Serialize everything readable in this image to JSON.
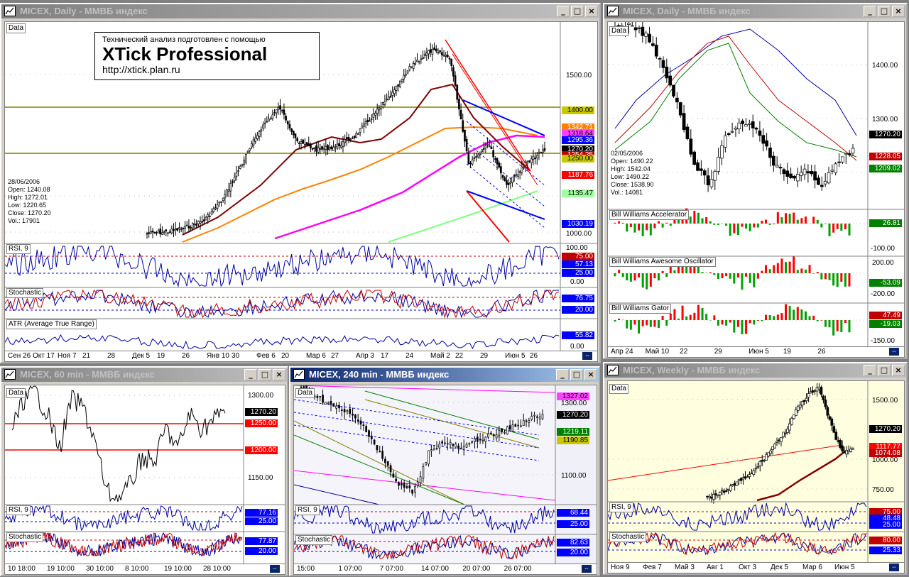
{
  "windows": {
    "daily_main": {
      "title": "MICEX, Daily - ММВБ индекс",
      "data_tag": "Data",
      "banner": {
        "line1": "Технический анализ подготовлен с помощью",
        "line2": "XTick Professional",
        "line3": "http://xtick.plan.ru"
      },
      "info": {
        "date": "28/06/2006",
        "open": "Open: 1240.08",
        "high": "High: 1272.01",
        "low": "Low: 1220.65",
        "close": "Close: 1270.20",
        "vol": "Vol.: 17901"
      },
      "price_axis": [
        "1500.00",
        "1000.00"
      ],
      "price_labels": [
        {
          "text": "1400.00",
          "bg": "#c8c800"
        },
        {
          "text": "1342.71",
          "bg": "#ff8000"
        },
        {
          "text": "1318.64",
          "bg": "#ff40ff"
        },
        {
          "text": "1295.36",
          "bg": "#0000ff"
        },
        {
          "text": "1270.20",
          "bg": "#000000"
        },
        {
          "text": "1254.25",
          "bg": "#c00000"
        },
        {
          "text": "1250.00",
          "bg": "#c8c800"
        },
        {
          "text": "1187.76",
          "bg": "#ff0000"
        },
        {
          "text": "1135.47",
          "bg": "#a0ffa0"
        },
        {
          "text": "1030.19",
          "bg": "#0000ff"
        }
      ],
      "rsi": {
        "tag": "RSI, 9",
        "labels": [
          "100.00",
          "75.00",
          "57.13",
          "25.00",
          "0.00"
        ]
      },
      "stoch": {
        "tag": "Stochastic",
        "labels": [
          "76.75",
          "20.00"
        ]
      },
      "atr": {
        "tag": "ATR (Average True Range)",
        "labels": [
          "55.82",
          "0.00"
        ]
      },
      "xaxis": [
        "Сен 26",
        "Окт 17",
        "Ноя 7",
        "21",
        "28",
        "Дек 5",
        "19",
        "26",
        "Янв 10",
        "30",
        "Фев 6",
        "20",
        "Мар 6",
        "27",
        "Апр 3",
        "17",
        "24",
        "Май 2",
        "22",
        "29",
        "Июн 5",
        "26"
      ]
    },
    "daily_bw": {
      "title": "MICEX, Daily - ММВБ индекс",
      "data_tag": "Data",
      "info": {
        "date": "02/05/2006",
        "open": "Open: 1490.22",
        "high": "High: 1542.04",
        "low": "Low: 1490.22",
        "close": "Close: 1538.90",
        "vol": "Vol.: 14081"
      },
      "price_axis": [
        "1400.00",
        "1300.00"
      ],
      "price_labels": [
        {
          "text": "1270.20",
          "bg": "#000000"
        },
        {
          "text": "1228.05",
          "bg": "#c00000"
        },
        {
          "text": "1209.02",
          "bg": "#008000"
        }
      ],
      "accel": {
        "tag": "Bill Williams Accelerator",
        "labels": [
          "26.81",
          "-100.00"
        ]
      },
      "ao": {
        "tag": "Bill Williams Awesome Oscillator",
        "labels": [
          "200.00",
          "-53.09",
          "-200.00"
        ]
      },
      "gator": {
        "tag": "Bill Williams Gator",
        "labels": [
          "47.49",
          "-19.03",
          "-150.00"
        ]
      },
      "xaxis": [
        "Апр 24",
        "Май 10",
        "22",
        "29",
        "Июн 5",
        "19",
        "26"
      ]
    },
    "min60": {
      "title": "MICEX, 60 min - ММВБ индекс",
      "data_tag": "Data",
      "price_axis": [
        "1300.00",
        "1150.00"
      ],
      "price_labels": [
        {
          "text": "1270.20",
          "bg": "#000000"
        },
        {
          "text": "1250.00",
          "bg": "#ff0000"
        },
        {
          "text": "1200.00",
          "bg": "#ff0000"
        }
      ],
      "rsi": {
        "tag": "RSI, 9",
        "labels": [
          "77.16",
          "25.00"
        ]
      },
      "stoch": {
        "tag": "Stochastic",
        "labels": [
          "77.87",
          "20.00"
        ]
      },
      "xaxis": [
        "10 18:00",
        "19 10:00",
        "30 10:00",
        "8 10:00",
        "19 10:00",
        "28 10:00"
      ]
    },
    "min240": {
      "title": "MICEX, 240 min - ММВБ индекс",
      "data_tag": "Data",
      "price_axis": [
        "1300.00",
        "1100.00"
      ],
      "price_labels": [
        {
          "text": "1327.02",
          "bg": "#ff40ff"
        },
        {
          "text": "1270.20",
          "bg": "#000000"
        },
        {
          "text": "1219.11",
          "bg": "#008000"
        },
        {
          "text": "1190.85",
          "bg": "#c8c800"
        }
      ],
      "rsi": {
        "tag": "RSI, 9",
        "labels": [
          "68.44",
          "25.00"
        ]
      },
      "stoch": {
        "tag": "Stochastic",
        "labels": [
          "82.63",
          "20.00"
        ]
      },
      "xaxis": [
        "15:00",
        "1 07:00",
        "7 07:00",
        "14 07:00",
        "20 07:00",
        "26 07:00"
      ]
    },
    "weekly": {
      "title": "MICEX, Weekly - ММВБ индекс",
      "data_tag": "Data",
      "price_axis": [
        "1500.00",
        "1000.00",
        "750.00"
      ],
      "price_labels": [
        {
          "text": "1270.20",
          "bg": "#000000"
        },
        {
          "text": "1117.77",
          "bg": "#ff0000"
        },
        {
          "text": "1074.08",
          "bg": "#c00000"
        }
      ],
      "rsi": {
        "tag": "RSI, 9",
        "labels": [
          "75.00",
          "48.48",
          "25.00"
        ]
      },
      "stoch": {
        "tag": "Stochastic",
        "labels": [
          "80.00",
          "25.33"
        ]
      },
      "xaxis": [
        "Ноя 9",
        "Фев 7",
        "Май 3",
        "Авг 1",
        "Окт 3",
        "Дек 5",
        "Мар 6",
        "Июн 5"
      ]
    }
  }
}
